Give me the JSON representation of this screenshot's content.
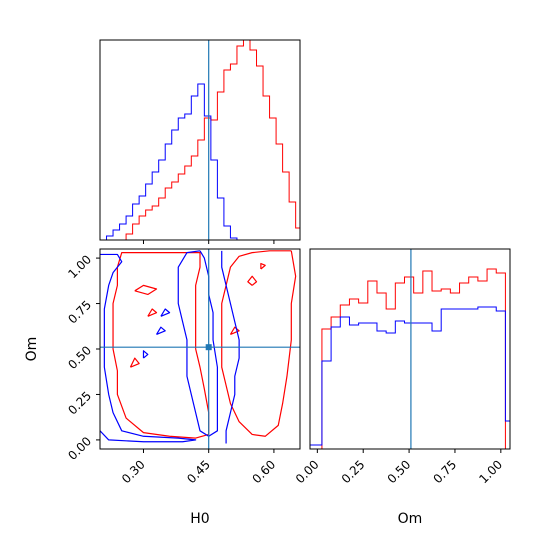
{
  "chart_data": {
    "type": "corner",
    "truth": {
      "H0": 0.45,
      "Om": 0.51
    },
    "colors": {
      "series_a": "#ff0000",
      "series_b": "#0000ff",
      "truth": "#1f77b4"
    },
    "panels": [
      {
        "id": "hist_H0",
        "type": "histogram",
        "xlim": [
          0.2,
          0.66
        ],
        "ylim": [
          0,
          1.0
        ],
        "x_ticks": [
          0.3,
          0.45,
          0.6
        ],
        "y_ticks": [],
        "bin_edges": [
          0.2,
          0.215,
          0.23,
          0.245,
          0.26,
          0.275,
          0.29,
          0.305,
          0.32,
          0.335,
          0.35,
          0.365,
          0.38,
          0.395,
          0.41,
          0.425,
          0.44,
          0.455,
          0.47,
          0.485,
          0.5,
          0.515,
          0.53,
          0.545,
          0.56,
          0.575,
          0.59,
          0.605,
          0.62,
          0.635,
          0.65,
          0.665
        ],
        "series": [
          {
            "color_key": "series_a",
            "values": [
              0,
              0,
              0,
              0,
              0.03,
              0.08,
              0.12,
              0.15,
              0.17,
              0.21,
              0.26,
              0.29,
              0.33,
              0.37,
              0.42,
              0.5,
              0.61,
              0.6,
              0.74,
              0.85,
              0.88,
              0.97,
              1.0,
              0.95,
              0.87,
              0.72,
              0.61,
              0.48,
              0.34,
              0.19,
              0.06
            ]
          },
          {
            "color_key": "series_b",
            "values": [
              0,
              0.02,
              0.05,
              0.08,
              0.12,
              0.18,
              0.22,
              0.28,
              0.34,
              0.4,
              0.48,
              0.55,
              0.61,
              0.63,
              0.72,
              0.78,
              0.62,
              0.4,
              0.21,
              0.07,
              0.01,
              0,
              0,
              0,
              0,
              0,
              0,
              0,
              0,
              0,
              0
            ]
          }
        ]
      },
      {
        "id": "hist_Om",
        "type": "histogram",
        "xlim": [
          -0.04,
          1.05
        ],
        "ylim": [
          0,
          1.0
        ],
        "x_ticks": [
          0.0,
          0.25,
          0.5,
          0.75,
          1.0
        ],
        "x_tick_labels": [
          "0.00",
          "0.25",
          "0.50",
          "0.75",
          "1.00"
        ],
        "xlabel": "Om",
        "bin_edges": [
          -0.04,
          0.025,
          0.075,
          0.125,
          0.175,
          0.225,
          0.275,
          0.325,
          0.375,
          0.425,
          0.475,
          0.525,
          0.575,
          0.625,
          0.675,
          0.725,
          0.775,
          0.825,
          0.875,
          0.925,
          0.975,
          1.025,
          1.05
        ],
        "series": [
          {
            "color_key": "series_a",
            "values": [
              0,
              0.6,
              0.66,
              0.72,
              0.75,
              0.73,
              0.84,
              0.78,
              0.7,
              0.83,
              0.86,
              0.78,
              0.89,
              0.79,
              0.8,
              0.78,
              0.83,
              0.86,
              0.84,
              0.9,
              0.88,
              0
            ]
          },
          {
            "color_key": "series_b",
            "values": [
              0.02,
              0.44,
              0.61,
              0.66,
              0.62,
              0.63,
              0.63,
              0.59,
              0.58,
              0.64,
              0.63,
              0.63,
              0.63,
              0.59,
              0.7,
              0.7,
              0.7,
              0.7,
              0.71,
              0.71,
              0.69,
              0.14
            ]
          }
        ]
      },
      {
        "id": "contour_H0_Om",
        "type": "contour",
        "xlim": [
          0.2,
          0.66
        ],
        "ylim": [
          -0.05,
          1.05
        ],
        "x_ticks": [
          0.3,
          0.45,
          0.6
        ],
        "x_tick_labels": [
          "0.30",
          "0.45",
          "0.60"
        ],
        "y_ticks": [
          0.0,
          0.25,
          0.5,
          0.75,
          1.0
        ],
        "y_tick_labels": [
          "0.00",
          "0.25",
          "0.50",
          "0.75",
          "1.00"
        ],
        "xlabel": "H0",
        "ylabel": "Om",
        "series": [
          {
            "color_key": "series_a",
            "contours": [
              [
                [
                  0.64,
                  1.04
                ],
                [
                  0.59,
                  1.04
                ],
                [
                  0.55,
                  1.03
                ],
                [
                  0.52,
                  1.01
                ],
                [
                  0.5,
                  0.95
                ],
                [
                  0.49,
                  0.85
                ],
                [
                  0.48,
                  0.75
                ],
                [
                  0.48,
                  0.62
                ],
                [
                  0.48,
                  0.5
                ],
                [
                  0.48,
                  0.4
                ],
                [
                  0.49,
                  0.3
                ],
                [
                  0.5,
                  0.2
                ],
                [
                  0.52,
                  0.1
                ],
                [
                  0.55,
                  0.03
                ],
                [
                  0.58,
                  0.02
                ],
                [
                  0.61,
                  0.08
                ],
                [
                  0.62,
                  0.2
                ],
                [
                  0.63,
                  0.35
                ],
                [
                  0.64,
                  0.55
                ],
                [
                  0.64,
                  0.75
                ],
                [
                  0.65,
                  0.9
                ],
                [
                  0.64,
                  1.04
                ]
              ],
              [
                [
                  0.3,
                  1.03
                ],
                [
                  0.25,
                  1.03
                ],
                [
                  0.24,
                  0.95
                ],
                [
                  0.24,
                  0.85
                ],
                [
                  0.23,
                  0.75
                ],
                [
                  0.23,
                  0.62
                ],
                [
                  0.23,
                  0.5
                ],
                [
                  0.24,
                  0.38
                ],
                [
                  0.24,
                  0.25
                ],
                [
                  0.26,
                  0.12
                ],
                [
                  0.3,
                  0.04
                ],
                [
                  0.36,
                  0.02
                ],
                [
                  0.42,
                  0.01
                ],
                [
                  0.45,
                  0.03
                ],
                [
                  0.45,
                  0.15
                ],
                [
                  0.44,
                  0.28
                ],
                [
                  0.43,
                  0.4
                ],
                [
                  0.42,
                  0.5
                ],
                [
                  0.42,
                  0.62
                ],
                [
                  0.42,
                  0.75
                ],
                [
                  0.42,
                  0.85
                ],
                [
                  0.43,
                  0.95
                ],
                [
                  0.43,
                  1.03
                ],
                [
                  0.37,
                  1.03
                ],
                [
                  0.3,
                  1.03
                ]
              ],
              [
                [
                  0.28,
                  0.82
                ],
                [
                  0.31,
                  0.8
                ],
                [
                  0.33,
                  0.83
                ],
                [
                  0.3,
                  0.85
                ],
                [
                  0.28,
                  0.82
                ]
              ],
              [
                [
                  0.31,
                  0.68
                ],
                [
                  0.33,
                  0.7
                ],
                [
                  0.32,
                  0.72
                ],
                [
                  0.31,
                  0.68
                ]
              ],
              [
                [
                  0.27,
                  0.4
                ],
                [
                  0.29,
                  0.42
                ],
                [
                  0.28,
                  0.45
                ],
                [
                  0.27,
                  0.4
                ]
              ],
              [
                [
                  0.55,
                  0.85
                ],
                [
                  0.56,
                  0.87
                ],
                [
                  0.55,
                  0.9
                ],
                [
                  0.54,
                  0.87
                ],
                [
                  0.55,
                  0.85
                ]
              ],
              [
                [
                  0.57,
                  0.94
                ],
                [
                  0.58,
                  0.96
                ],
                [
                  0.57,
                  0.97
                ],
                [
                  0.57,
                  0.94
                ]
              ],
              [
                [
                  0.5,
                  0.58
                ],
                [
                  0.52,
                  0.6
                ],
                [
                  0.51,
                  0.62
                ],
                [
                  0.5,
                  0.58
                ]
              ]
            ]
          },
          {
            "color_key": "series_b",
            "contours": [
              [
                [
                  0.43,
                  1.04
                ],
                [
                  0.4,
                  1.03
                ],
                [
                  0.38,
                  0.95
                ],
                [
                  0.38,
                  0.85
                ],
                [
                  0.38,
                  0.75
                ],
                [
                  0.39,
                  0.65
                ],
                [
                  0.4,
                  0.55
                ],
                [
                  0.4,
                  0.45
                ],
                [
                  0.4,
                  0.35
                ],
                [
                  0.41,
                  0.25
                ],
                [
                  0.42,
                  0.15
                ],
                [
                  0.43,
                  0.05
                ],
                [
                  0.45,
                  0.02
                ],
                [
                  0.47,
                  0.05
                ],
                [
                  0.47,
                  0.15
                ],
                [
                  0.47,
                  0.28
                ],
                [
                  0.47,
                  0.4
                ],
                [
                  0.46,
                  0.55
                ],
                [
                  0.46,
                  0.7
                ],
                [
                  0.45,
                  0.8
                ],
                [
                  0.45,
                  0.9
                ],
                [
                  0.44,
                  1.0
                ],
                [
                  0.43,
                  1.04
                ]
              ],
              [
                [
                  0.2,
                  1.02
                ],
                [
                  0.24,
                  1.02
                ],
                [
                  0.25,
                  0.98
                ],
                [
                  0.23,
                  0.92
                ],
                [
                  0.22,
                  0.85
                ],
                [
                  0.21,
                  0.72
                ],
                [
                  0.21,
                  0.55
                ],
                [
                  0.21,
                  0.4
                ],
                [
                  0.22,
                  0.25
                ],
                [
                  0.23,
                  0.15
                ],
                [
                  0.25,
                  0.05
                ],
                [
                  0.3,
                  0.02
                ],
                [
                  0.38,
                  0.01
                ],
                [
                  0.42,
                  0.0
                ],
                [
                  0.39,
                  -0.01
                ],
                [
                  0.3,
                  -0.01
                ],
                [
                  0.22,
                  0.0
                ],
                [
                  0.2,
                  0.05
                ]
              ],
              [
                [
                  0.48,
                  1.04
                ],
                [
                  0.48,
                  0.95
                ],
                [
                  0.49,
                  0.85
                ],
                [
                  0.5,
                  0.75
                ],
                [
                  0.51,
                  0.65
                ],
                [
                  0.52,
                  0.55
                ],
                [
                  0.52,
                  0.45
                ],
                [
                  0.51,
                  0.35
                ],
                [
                  0.51,
                  0.25
                ],
                [
                  0.5,
                  0.15
                ],
                [
                  0.49,
                  0.05
                ],
                [
                  0.49,
                  -0.02
                ]
              ],
              [
                [
                  0.33,
                  0.58
                ],
                [
                  0.35,
                  0.6
                ],
                [
                  0.34,
                  0.62
                ],
                [
                  0.33,
                  0.58
                ]
              ],
              [
                [
                  0.34,
                  0.68
                ],
                [
                  0.36,
                  0.7
                ],
                [
                  0.35,
                  0.72
                ],
                [
                  0.34,
                  0.68
                ]
              ],
              [
                [
                  0.3,
                  0.45
                ],
                [
                  0.31,
                  0.47
                ],
                [
                  0.3,
                  0.49
                ],
                [
                  0.3,
                  0.45
                ]
              ]
            ]
          }
        ]
      }
    ]
  }
}
